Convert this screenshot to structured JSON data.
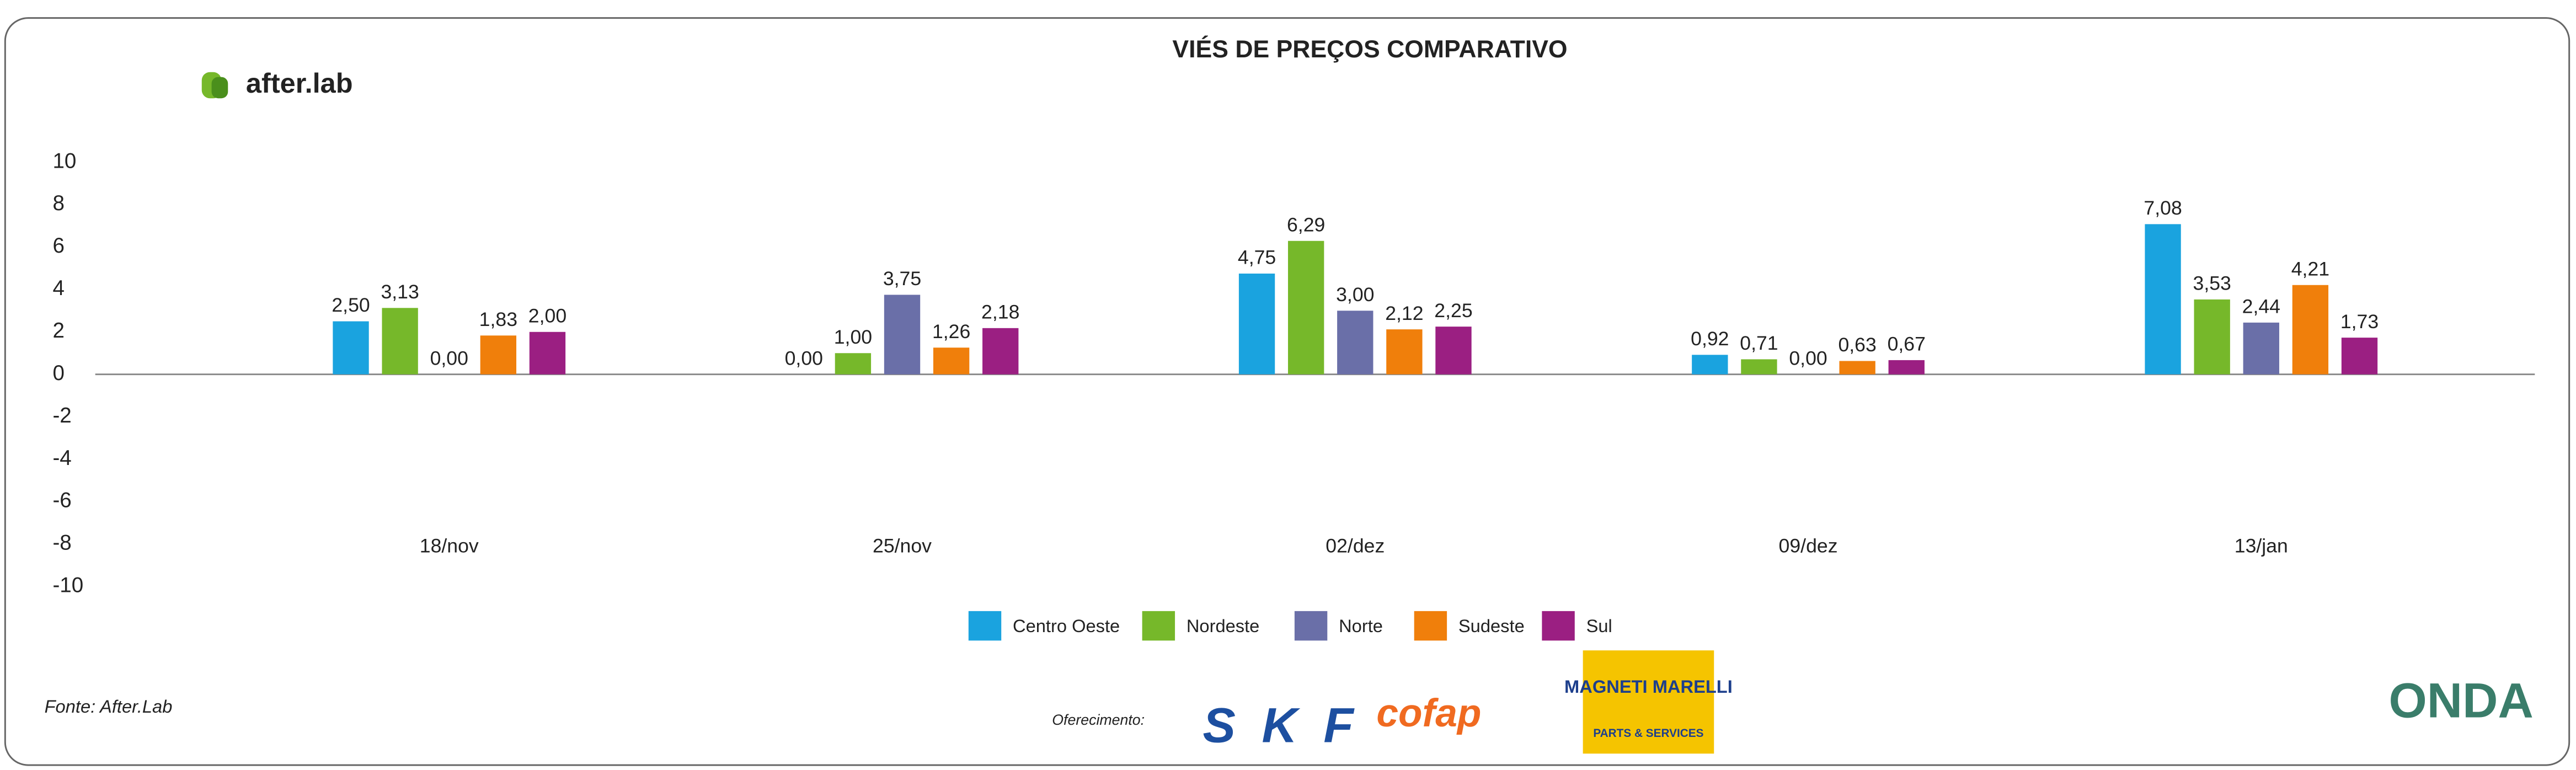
{
  "chart_data": {
    "type": "bar",
    "title": "VIÉS DE PREÇOS COMPARATIVO",
    "categories": [
      "18/nov",
      "25/nov",
      "02/dez",
      "09/dez",
      "13/jan"
    ],
    "series": [
      {
        "name": "Centro Oeste",
        "color": "#1aa3df",
        "values": [
          2.5,
          0.0,
          4.75,
          0.92,
          7.08
        ],
        "value_labels": [
          "2,50",
          "0,00",
          "4,75",
          "0,92",
          "7,08"
        ]
      },
      {
        "name": "Nordeste",
        "color": "#76b82a",
        "values": [
          3.13,
          1.0,
          6.29,
          0.71,
          3.53
        ],
        "value_labels": [
          "3,13",
          "1,00",
          "6,29",
          "0,71",
          "3,53"
        ]
      },
      {
        "name": "Norte",
        "color": "#6a6fa8",
        "values": [
          0.0,
          3.75,
          3.0,
          0.0,
          2.44
        ],
        "value_labels": [
          "0,00",
          "3,75",
          "3,00",
          "0,00",
          "2,44"
        ]
      },
      {
        "name": "Sudeste",
        "color": "#f07f0b",
        "values": [
          1.83,
          1.26,
          2.12,
          0.63,
          4.21
        ],
        "value_labels": [
          "1,83",
          "1,26",
          "2,12",
          "0,63",
          "4,21"
        ]
      },
      {
        "name": "Sul",
        "color": "#9b1f82",
        "values": [
          2.0,
          2.18,
          2.25,
          0.67,
          1.73
        ],
        "value_labels": [
          "2,00",
          "2,18",
          "2,25",
          "0,67",
          "1,73"
        ]
      }
    ],
    "ylim": [
      -10,
      10
    ],
    "yticks": [
      -10,
      -8,
      -6,
      -4,
      -2,
      0,
      2,
      4,
      6,
      8,
      10
    ],
    "grid": false,
    "legend": "bottom"
  },
  "source": "Fonte: After.Lab",
  "sponsor_label": "Oferecimento:",
  "logos": {
    "afterlab": "after.lab",
    "skf": "SKF",
    "cofap": "cofap",
    "magneti": "MAGNETI MARELLI",
    "magneti_sub": "PARTS & SERVICES",
    "onda": "ONDA"
  }
}
